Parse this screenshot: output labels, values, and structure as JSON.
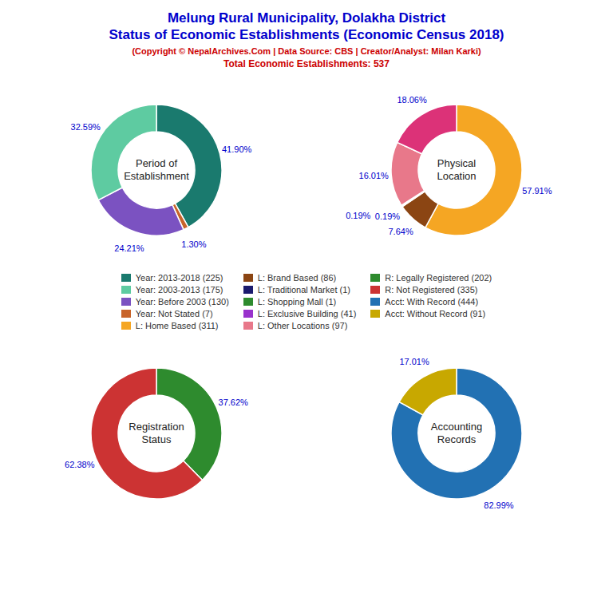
{
  "title": [
    "Melung Rural Municipality, Dolakha District",
    "Status of Economic Establishments (Economic Census 2018)"
  ],
  "subtitle": [
    "(Copyright © NepalArchives.Com | Data Source: CBS | Creator/Analyst: Milan Karki)",
    "Total Economic Establishments: 537"
  ],
  "title_color": "#0000CC",
  "subtitle_color": "#CC0000",
  "label_color": "#0000CC",
  "chart_data": [
    {
      "type": "pie",
      "title": "Period of\nEstablishment",
      "values": [
        41.9,
        1.3,
        24.21,
        32.59
      ],
      "value_labels": [
        "41.90%",
        "1.30%",
        "24.21%",
        "32.59%"
      ],
      "colors": [
        "#1a7a6e",
        "#c8642a",
        "#7b52c1",
        "#5ecba1"
      ],
      "data_labels": true
    },
    {
      "type": "pie",
      "title": "Physical\nLocation",
      "values": [
        57.91,
        7.64,
        0.19,
        0.19,
        16.01,
        18.06
      ],
      "value_labels": [
        "57.91%",
        "7.64%",
        "0.19%",
        "0.19%",
        "16.01%",
        "18.06%"
      ],
      "colors": [
        "#f5a623",
        "#8B4513",
        "#606060",
        "#9932CC",
        "#e8788a",
        "#dc3278"
      ],
      "data_labels": true
    },
    {
      "type": "pie",
      "title": "Registration\nStatus",
      "values": [
        37.62,
        62.38
      ],
      "value_labels": [
        "37.62%",
        "62.38%"
      ],
      "colors": [
        "#2e8b2e",
        "#cc3333"
      ],
      "data_labels": true
    },
    {
      "type": "pie",
      "title": "Accounting\nRecords",
      "values": [
        82.99,
        17.01
      ],
      "value_labels": [
        "82.99%",
        "17.01%"
      ],
      "colors": [
        "#2271b3",
        "#c8a800"
      ],
      "data_labels": true
    }
  ],
  "legend_items": [
    {
      "name": "Year: 2013-2018 (225)",
      "color": "#1a7a6e"
    },
    {
      "name": "Year: 2003-2013 (175)",
      "color": "#5ecba1"
    },
    {
      "name": "Year: Before 2003 (130)",
      "color": "#7b52c1"
    },
    {
      "name": "Year: Not Stated (7)",
      "color": "#c8642a"
    },
    {
      "name": "L: Home Based (311)",
      "color": "#f5a623"
    },
    {
      "name": "L: Brand Based (86)",
      "color": "#8B4513"
    },
    {
      "name": "L: Traditional Market (1)",
      "color": "#1a1a6e"
    },
    {
      "name": "L: Shopping Mall (1)",
      "color": "#2e8b2e"
    },
    {
      "name": "L: Exclusive Building (41)",
      "color": "#9932CC"
    },
    {
      "name": "L: Other Locations (97)",
      "color": "#e8788a"
    },
    {
      "name": "R: Legally Registered (202)",
      "color": "#2e8b2e"
    },
    {
      "name": "R: Not Registered (335)",
      "color": "#cc3333"
    },
    {
      "name": "Acct: With Record (444)",
      "color": "#2271b3"
    },
    {
      "name": "Acct: Without Record (91)",
      "color": "#c8a800"
    }
  ]
}
